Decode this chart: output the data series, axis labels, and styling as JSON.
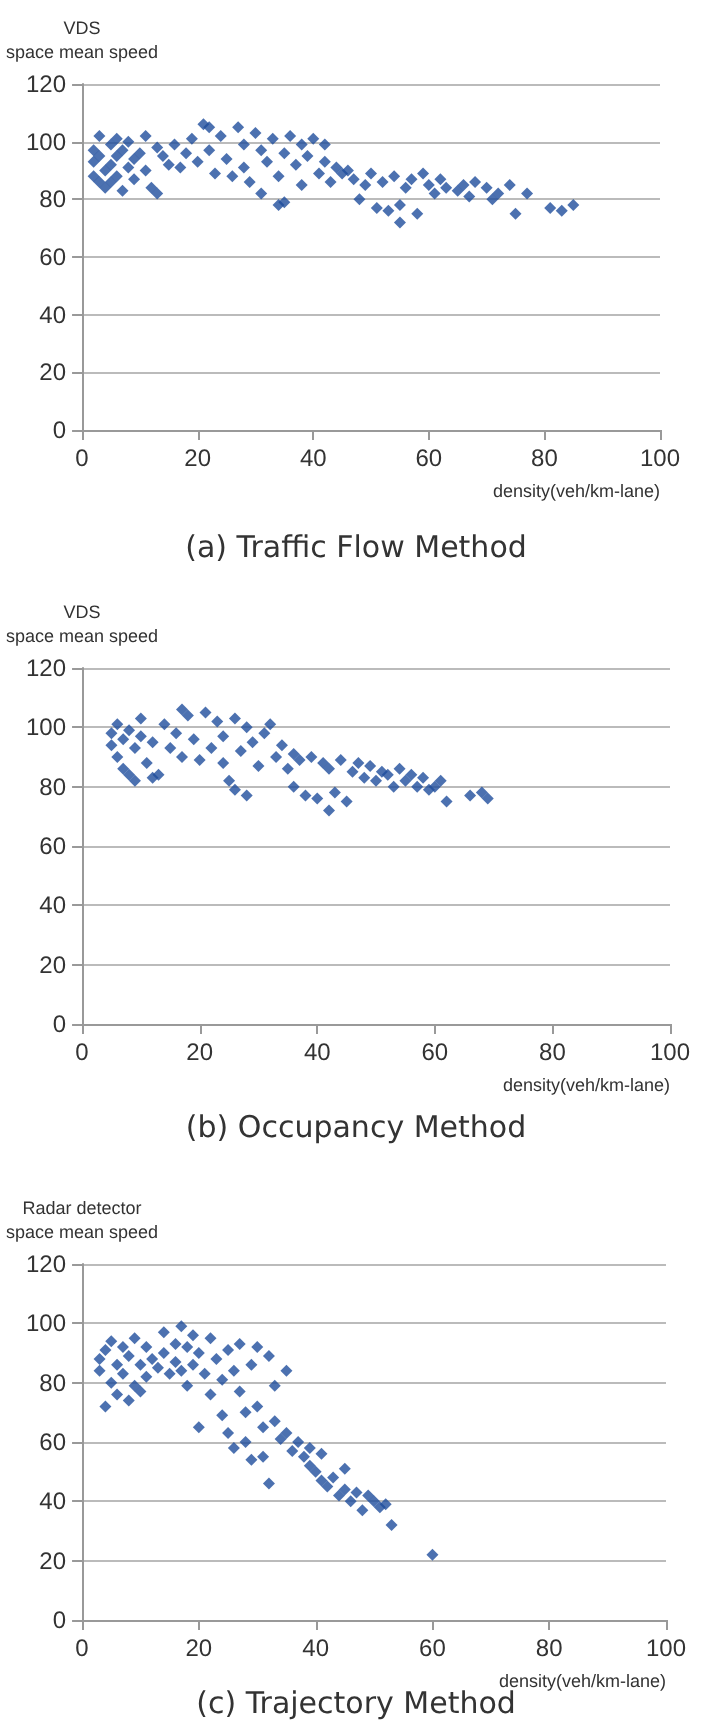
{
  "chart_data": [
    {
      "type": "scatter",
      "title": "(a) Traffic Flow Method",
      "xlabel": "density(veh/km-lane)",
      "ylabel": "VDS\nspace mean speed",
      "xlim": [
        0,
        100
      ],
      "xticks": [
        0,
        20,
        40,
        60,
        80,
        100
      ],
      "ylim": [
        0,
        120
      ],
      "yticks": [
        0,
        20,
        40,
        60,
        80,
        100,
        120
      ],
      "grid": "y",
      "marker": "diamond",
      "series": [
        {
          "color": "#1f4e9c",
          "x": [
            2,
            2,
            2,
            3,
            3,
            3,
            4,
            4,
            5,
            5,
            5,
            6,
            6,
            6,
            7,
            7,
            8,
            8,
            9,
            9,
            10,
            11,
            11,
            12,
            13,
            13,
            14,
            15,
            16,
            17,
            18,
            19,
            20,
            21,
            22,
            22,
            23,
            24,
            25,
            26,
            27,
            28,
            28,
            29,
            30,
            31,
            31,
            32,
            33,
            34,
            34,
            35,
            35,
            36,
            37,
            38,
            38,
            39,
            40,
            41,
            42,
            42,
            43,
            44,
            45,
            46,
            47,
            48,
            49,
            50,
            51,
            52,
            53,
            54,
            55,
            55,
            56,
            57,
            58,
            59,
            60,
            61,
            62,
            63,
            65,
            66,
            67,
            68,
            70,
            71,
            72,
            74,
            75,
            77,
            81,
            83,
            85
          ],
          "values": [
            97,
            93,
            88,
            86,
            102,
            95,
            90,
            84,
            99,
            92,
            86,
            101,
            95,
            88,
            97,
            83,
            100,
            91,
            94,
            87,
            96,
            102,
            90,
            84,
            82,
            98,
            95,
            92,
            99,
            91,
            96,
            101,
            93,
            106,
            105,
            97,
            89,
            102,
            94,
            88,
            105,
            99,
            91,
            86,
            103,
            97,
            82,
            93,
            101,
            88,
            78,
            79,
            96,
            102,
            92,
            99,
            85,
            95,
            101,
            89,
            99,
            93,
            86,
            91,
            89,
            90,
            87,
            80,
            85,
            89,
            77,
            86,
            76,
            88,
            72,
            78,
            84,
            87,
            75,
            89,
            85,
            82,
            87,
            84,
            83,
            85,
            81,
            86,
            84,
            80,
            82,
            85,
            75,
            82,
            77,
            76,
            78
          ]
        }
      ]
    },
    {
      "type": "scatter",
      "title": "(b) Occupancy Method",
      "xlabel": "density(veh/km-lane)",
      "ylabel": "VDS\nspace mean speed",
      "xlim": [
        0,
        100
      ],
      "xticks": [
        0,
        20,
        40,
        60,
        80,
        100
      ],
      "ylim": [
        0,
        120
      ],
      "yticks": [
        0,
        20,
        40,
        60,
        80,
        100,
        120
      ],
      "grid": "y",
      "marker": "diamond",
      "series": [
        {
          "color": "#1f4e9c",
          "x": [
            5,
            5,
            6,
            6,
            7,
            7,
            8,
            8,
            9,
            9,
            10,
            10,
            11,
            12,
            12,
            13,
            14,
            15,
            16,
            17,
            17,
            18,
            19,
            20,
            21,
            22,
            23,
            24,
            24,
            25,
            26,
            26,
            27,
            28,
            28,
            29,
            30,
            31,
            32,
            33,
            34,
            35,
            36,
            36,
            37,
            38,
            39,
            40,
            41,
            42,
            42,
            43,
            44,
            45,
            46,
            47,
            48,
            49,
            50,
            51,
            52,
            53,
            54,
            55,
            56,
            57,
            58,
            59,
            60,
            61,
            62,
            66,
            68,
            69
          ],
          "values": [
            98,
            94,
            101,
            90,
            96,
            86,
            99,
            84,
            93,
            82,
            103,
            97,
            88,
            83,
            95,
            84,
            101,
            93,
            98,
            90,
            106,
            104,
            96,
            89,
            105,
            93,
            102,
            88,
            97,
            82,
            79,
            103,
            92,
            77,
            100,
            95,
            87,
            98,
            101,
            90,
            94,
            86,
            80,
            91,
            89,
            77,
            90,
            76,
            88,
            72,
            86,
            78,
            89,
            75,
            85,
            88,
            83,
            87,
            82,
            85,
            84,
            80,
            86,
            82,
            84,
            80,
            83,
            79,
            80,
            82,
            75,
            77,
            78,
            76
          ]
        }
      ]
    },
    {
      "type": "scatter",
      "title": "(c) Trajectory Method",
      "xlabel": "density(veh/km-lane)",
      "ylabel": "Radar detector\nspace mean speed",
      "xlim": [
        0,
        100
      ],
      "xticks": [
        0,
        20,
        40,
        60,
        80,
        100
      ],
      "ylim": [
        0,
        120
      ],
      "yticks": [
        0,
        20,
        40,
        60,
        80,
        100,
        120
      ],
      "grid": "y",
      "marker": "diamond",
      "series": [
        {
          "color": "#1f4e9c",
          "x": [
            3,
            3,
            4,
            4,
            5,
            5,
            6,
            6,
            7,
            7,
            8,
            8,
            9,
            9,
            10,
            10,
            11,
            11,
            12,
            13,
            14,
            14,
            15,
            16,
            16,
            17,
            17,
            18,
            18,
            19,
            19,
            20,
            20,
            21,
            22,
            22,
            23,
            24,
            24,
            25,
            25,
            26,
            26,
            27,
            27,
            28,
            28,
            29,
            29,
            30,
            30,
            31,
            31,
            32,
            32,
            33,
            33,
            34,
            35,
            35,
            36,
            37,
            38,
            39,
            39,
            40,
            41,
            41,
            42,
            43,
            44,
            45,
            45,
            46,
            47,
            48,
            49,
            50,
            51,
            52,
            53,
            60
          ],
          "values": [
            88,
            84,
            72,
            91,
            94,
            80,
            86,
            76,
            92,
            83,
            74,
            89,
            79,
            95,
            86,
            77,
            92,
            82,
            88,
            85,
            97,
            90,
            83,
            93,
            87,
            99,
            84,
            79,
            92,
            96,
            86,
            65,
            90,
            83,
            95,
            76,
            88,
            81,
            69,
            91,
            63,
            84,
            58,
            93,
            77,
            70,
            60,
            54,
            86,
            92,
            72,
            65,
            55,
            46,
            89,
            79,
            67,
            61,
            84,
            63,
            57,
            60,
            55,
            52,
            58,
            50,
            56,
            47,
            45,
            48,
            42,
            51,
            44,
            40,
            43,
            37,
            42,
            40,
            38,
            39,
            32,
            22
          ]
        }
      ]
    }
  ]
}
